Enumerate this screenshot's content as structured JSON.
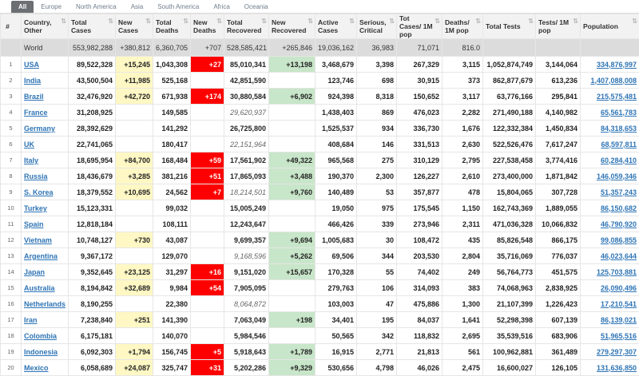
{
  "tabs": [
    "All",
    "Europe",
    "North America",
    "Asia",
    "South America",
    "Africa",
    "Oceania"
  ],
  "active_tab": 0,
  "columns": [
    "#",
    "Country, Other",
    "Total Cases",
    "New Cases",
    "Total Deaths",
    "New Deaths",
    "Total Recovered",
    "New Recovered",
    "Active Cases",
    "Serious, Critical",
    "Tot Cases/ 1M pop",
    "Deaths/ 1M pop",
    "Total Tests",
    "Tests/ 1M pop",
    "Population"
  ],
  "world": {
    "name": "World",
    "total_cases": "553,982,288",
    "new_cases": "+380,812",
    "total_deaths": "6,360,705",
    "new_deaths": "+707",
    "total_recovered": "528,585,421",
    "new_recovered": "+265,846",
    "active": "19,036,162",
    "critical": "36,983",
    "cases_1m": "71,071",
    "deaths_1m": "816.0"
  },
  "rows": [
    {
      "n": "1",
      "country": "USA",
      "total_cases": "89,522,328",
      "new_cases": "+15,245",
      "total_deaths": "1,043,308",
      "new_deaths": "+27",
      "total_recovered": "85,010,341",
      "new_recovered": "+13,198",
      "active": "3,468,679",
      "critical": "3,398",
      "cases_1m": "267,329",
      "deaths_1m": "3,115",
      "tests": "1,052,874,749",
      "tests_1m": "3,144,064",
      "population": "334,876,997"
    },
    {
      "n": "2",
      "country": "India",
      "total_cases": "43,500,504",
      "new_cases": "+11,985",
      "total_deaths": "525,168",
      "new_deaths": "",
      "total_recovered": "42,851,590",
      "new_recovered": "",
      "active": "123,746",
      "critical": "698",
      "cases_1m": "30,915",
      "deaths_1m": "373",
      "tests": "862,877,679",
      "tests_1m": "613,236",
      "population": "1,407,088,008"
    },
    {
      "n": "3",
      "country": "Brazil",
      "total_cases": "32,476,920",
      "new_cases": "+42,720",
      "total_deaths": "671,938",
      "new_deaths": "+174",
      "total_recovered": "30,880,584",
      "new_recovered": "+6,902",
      "active": "924,398",
      "critical": "8,318",
      "cases_1m": "150,652",
      "deaths_1m": "3,117",
      "tests": "63,776,166",
      "tests_1m": "295,841",
      "population": "215,575,481"
    },
    {
      "n": "4",
      "country": "France",
      "total_cases": "31,208,925",
      "new_cases": "",
      "total_deaths": "149,585",
      "new_deaths": "",
      "total_recovered": "29,620,937",
      "rec_na": true,
      "new_recovered": "",
      "active": "1,438,403",
      "critical": "869",
      "cases_1m": "476,023",
      "deaths_1m": "2,282",
      "tests": "271,490,188",
      "tests_1m": "4,140,982",
      "population": "65,561,783"
    },
    {
      "n": "5",
      "country": "Germany",
      "total_cases": "28,392,629",
      "new_cases": "",
      "total_deaths": "141,292",
      "new_deaths": "",
      "total_recovered": "26,725,800",
      "new_recovered": "",
      "active": "1,525,537",
      "critical": "934",
      "cases_1m": "336,730",
      "deaths_1m": "1,676",
      "tests": "122,332,384",
      "tests_1m": "1,450,834",
      "population": "84,318,653"
    },
    {
      "n": "6",
      "country": "UK",
      "total_cases": "22,741,065",
      "new_cases": "",
      "total_deaths": "180,417",
      "new_deaths": "",
      "total_recovered": "22,151,964",
      "rec_na": true,
      "new_recovered": "",
      "active": "408,684",
      "critical": "146",
      "cases_1m": "331,513",
      "deaths_1m": "2,630",
      "tests": "522,526,476",
      "tests_1m": "7,617,247",
      "population": "68,597,811"
    },
    {
      "n": "7",
      "country": "Italy",
      "total_cases": "18,695,954",
      "new_cases": "+84,700",
      "total_deaths": "168,484",
      "new_deaths": "+59",
      "total_recovered": "17,561,902",
      "new_recovered": "+49,322",
      "active": "965,568",
      "critical": "275",
      "cases_1m": "310,129",
      "deaths_1m": "2,795",
      "tests": "227,538,458",
      "tests_1m": "3,774,416",
      "population": "60,284,410"
    },
    {
      "n": "8",
      "country": "Russia",
      "total_cases": "18,436,679",
      "new_cases": "+3,285",
      "total_deaths": "381,216",
      "new_deaths": "+51",
      "total_recovered": "17,865,093",
      "new_recovered": "+3,488",
      "active": "190,370",
      "critical": "2,300",
      "cases_1m": "126,227",
      "deaths_1m": "2,610",
      "tests": "273,400,000",
      "tests_1m": "1,871,842",
      "population": "146,059,346"
    },
    {
      "n": "9",
      "country": "S. Korea",
      "total_cases": "18,379,552",
      "new_cases": "+10,695",
      "total_deaths": "24,562",
      "new_deaths": "+7",
      "total_recovered": "18,214,501",
      "rec_na": true,
      "new_recovered": "+9,760",
      "active": "140,489",
      "critical": "53",
      "cases_1m": "357,877",
      "deaths_1m": "478",
      "tests": "15,804,065",
      "tests_1m": "307,728",
      "population": "51,357,243"
    },
    {
      "n": "10",
      "country": "Turkey",
      "total_cases": "15,123,331",
      "new_cases": "",
      "total_deaths": "99,032",
      "new_deaths": "",
      "total_recovered": "15,005,249",
      "new_recovered": "",
      "active": "19,050",
      "critical": "975",
      "cases_1m": "175,545",
      "deaths_1m": "1,150",
      "tests": "162,743,369",
      "tests_1m": "1,889,055",
      "population": "86,150,682"
    },
    {
      "n": "11",
      "country": "Spain",
      "total_cases": "12,818,184",
      "new_cases": "",
      "total_deaths": "108,111",
      "new_deaths": "",
      "total_recovered": "12,243,647",
      "new_recovered": "",
      "active": "466,426",
      "critical": "339",
      "cases_1m": "273,946",
      "deaths_1m": "2,311",
      "tests": "471,036,328",
      "tests_1m": "10,066,832",
      "population": "46,790,920"
    },
    {
      "n": "12",
      "country": "Vietnam",
      "total_cases": "10,748,127",
      "new_cases": "+730",
      "total_deaths": "43,087",
      "new_deaths": "",
      "total_recovered": "9,699,357",
      "new_recovered": "+9,694",
      "active": "1,005,683",
      "critical": "30",
      "cases_1m": "108,472",
      "deaths_1m": "435",
      "tests": "85,826,548",
      "tests_1m": "866,175",
      "population": "99,086,855"
    },
    {
      "n": "13",
      "country": "Argentina",
      "total_cases": "9,367,172",
      "new_cases": "",
      "total_deaths": "129,070",
      "new_deaths": "",
      "total_recovered": "9,168,596",
      "rec_na": true,
      "new_recovered": "+5,262",
      "active": "69,506",
      "critical": "344",
      "cases_1m": "203,530",
      "deaths_1m": "2,804",
      "tests": "35,716,069",
      "tests_1m": "776,037",
      "population": "46,023,644"
    },
    {
      "n": "14",
      "country": "Japan",
      "total_cases": "9,352,645",
      "new_cases": "+23,125",
      "total_deaths": "31,297",
      "new_deaths": "+16",
      "total_recovered": "9,151,020",
      "new_recovered": "+15,657",
      "active": "170,328",
      "critical": "55",
      "cases_1m": "74,402",
      "deaths_1m": "249",
      "tests": "56,764,773",
      "tests_1m": "451,575",
      "population": "125,703,881"
    },
    {
      "n": "15",
      "country": "Australia",
      "total_cases": "8,194,842",
      "new_cases": "+32,689",
      "total_deaths": "9,984",
      "new_deaths": "+54",
      "total_recovered": "7,905,095",
      "new_recovered": "",
      "active": "279,763",
      "critical": "106",
      "cases_1m": "314,093",
      "deaths_1m": "383",
      "tests": "74,068,963",
      "tests_1m": "2,838,925",
      "population": "26,090,496"
    },
    {
      "n": "16",
      "country": "Netherlands",
      "total_cases": "8,190,255",
      "new_cases": "",
      "total_deaths": "22,380",
      "new_deaths": "",
      "total_recovered": "8,064,872",
      "rec_na": true,
      "new_recovered": "",
      "active": "103,003",
      "critical": "47",
      "cases_1m": "475,886",
      "deaths_1m": "1,300",
      "tests": "21,107,399",
      "tests_1m": "1,226,423",
      "population": "17,210,541"
    },
    {
      "n": "17",
      "country": "Iran",
      "total_cases": "7,238,840",
      "new_cases": "+251",
      "total_deaths": "141,390",
      "new_deaths": "",
      "total_recovered": "7,063,049",
      "new_recovered": "+198",
      "active": "34,401",
      "critical": "195",
      "cases_1m": "84,037",
      "deaths_1m": "1,641",
      "tests": "52,298,398",
      "tests_1m": "607,139",
      "population": "86,139,021"
    },
    {
      "n": "18",
      "country": "Colombia",
      "total_cases": "6,175,181",
      "new_cases": "",
      "total_deaths": "140,070",
      "new_deaths": "",
      "total_recovered": "5,984,546",
      "new_recovered": "",
      "active": "50,565",
      "critical": "342",
      "cases_1m": "118,832",
      "deaths_1m": "2,695",
      "tests": "35,539,516",
      "tests_1m": "683,906",
      "population": "51,965,516"
    },
    {
      "n": "19",
      "country": "Indonesia",
      "total_cases": "6,092,303",
      "new_cases": "+1,794",
      "total_deaths": "156,745",
      "new_deaths": "+5",
      "total_recovered": "5,918,643",
      "new_recovered": "+1,789",
      "active": "16,915",
      "critical": "2,771",
      "cases_1m": "21,813",
      "deaths_1m": "561",
      "tests": "100,962,881",
      "tests_1m": "361,489",
      "population": "279,297,307"
    },
    {
      "n": "20",
      "country": "Mexico",
      "total_cases": "6,058,689",
      "new_cases": "+24,087",
      "total_deaths": "325,747",
      "new_deaths": "+31",
      "total_recovered": "5,202,286",
      "new_recovered": "+9,329",
      "active": "530,656",
      "critical": "4,798",
      "cases_1m": "46,026",
      "deaths_1m": "2,475",
      "tests": "16,600,027",
      "tests_1m": "126,105",
      "population": "131,636,850"
    }
  ]
}
